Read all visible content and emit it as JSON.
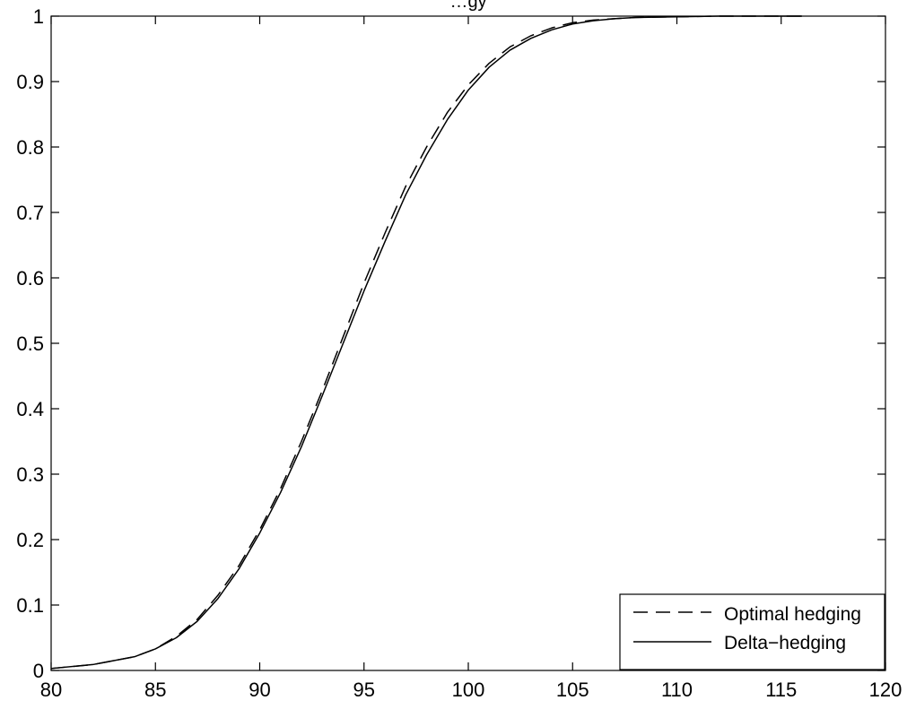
{
  "chart_data": {
    "type": "line",
    "title": "…gy",
    "xlabel": "",
    "ylabel": "",
    "xlim": [
      80,
      120
    ],
    "ylim": [
      0,
      1
    ],
    "xticks": [
      80,
      85,
      90,
      95,
      100,
      105,
      110,
      115,
      120
    ],
    "yticks": [
      0,
      0.1,
      0.2,
      0.3,
      0.4,
      0.5,
      0.6,
      0.7,
      0.8,
      0.9,
      1
    ],
    "ytick_labels": [
      "0",
      "0.1",
      "0.2",
      "0.3",
      "0.4",
      "0.5",
      "0.6",
      "0.7",
      "0.8",
      "0.9",
      "1"
    ],
    "grid": false,
    "legend_position": "bottom-right",
    "series": [
      {
        "name": "Optimal hedging",
        "style": "dashed",
        "color": "#000000",
        "x": [
          80,
          82,
          84,
          85,
          86,
          87,
          88,
          89,
          90,
          91,
          92,
          93,
          94,
          95,
          96,
          97,
          98,
          99,
          100,
          101,
          102,
          103,
          104,
          105,
          106,
          107,
          108,
          110,
          112,
          114,
          116
        ],
        "y": [
          0.003,
          0.009,
          0.021,
          0.033,
          0.052,
          0.078,
          0.115,
          0.16,
          0.215,
          0.278,
          0.35,
          0.428,
          0.51,
          0.592,
          0.668,
          0.74,
          0.8,
          0.853,
          0.895,
          0.928,
          0.953,
          0.97,
          0.982,
          0.99,
          0.994,
          0.996,
          0.998,
          0.999,
          1.0,
          1.0,
          1.0
        ]
      },
      {
        "name": "Delta-hedging",
        "style": "solid",
        "color": "#000000",
        "x": [
          80,
          82,
          84,
          85,
          86,
          87,
          88,
          89,
          90,
          91,
          92,
          93,
          94,
          95,
          96,
          97,
          98,
          99,
          100,
          101,
          102,
          103,
          104,
          105,
          106,
          107,
          108,
          110,
          112,
          114,
          116
        ],
        "y": [
          0.003,
          0.009,
          0.021,
          0.033,
          0.05,
          0.075,
          0.11,
          0.155,
          0.21,
          0.272,
          0.342,
          0.42,
          0.5,
          0.58,
          0.655,
          0.727,
          0.788,
          0.842,
          0.887,
          0.922,
          0.948,
          0.966,
          0.979,
          0.988,
          0.993,
          0.996,
          0.998,
          0.999,
          1.0,
          1.0,
          1.0
        ]
      }
    ]
  },
  "legend": {
    "labels": [
      "Optimal hedging",
      "Delta−hedging"
    ]
  }
}
